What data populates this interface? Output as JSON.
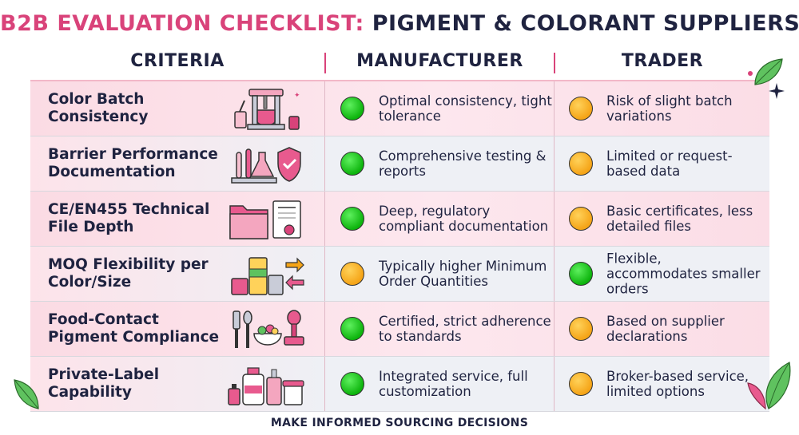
{
  "title": {
    "part1": "B2B EVALUATION CHECKLIST:",
    "part2": "PIGMENT & COLORANT SUPPLIERS"
  },
  "columns": {
    "criteria": "CRITERIA",
    "manufacturer": "MANUFACTURER",
    "trader": "TRADER"
  },
  "rows": [
    {
      "criterion": "Color Batch Consistency",
      "icon": "mixing-machine-icon",
      "manufacturer": {
        "status": "green",
        "text": "Optimal consistency, tight tolerance"
      },
      "trader": {
        "status": "orange",
        "text": "Risk of slight batch variations"
      }
    },
    {
      "criterion": "Barrier Performance Documentation",
      "icon": "lab-shield-icon",
      "manufacturer": {
        "status": "green",
        "text": "Comprehensive testing & reports"
      },
      "trader": {
        "status": "orange",
        "text": "Limited or request-based data"
      }
    },
    {
      "criterion": "CE/EN455 Technical File Depth",
      "icon": "folder-certificate-icon",
      "manufacturer": {
        "status": "green",
        "text": "Deep, regulatory compliant documentation"
      },
      "trader": {
        "status": "orange",
        "text": "Basic certificates, less detailed files"
      }
    },
    {
      "criterion": "MOQ Flexibility per Color/Size",
      "icon": "paint-cans-icon",
      "manufacturer": {
        "status": "orange",
        "text": "Typically higher Minimum Order Quantities"
      },
      "trader": {
        "status": "green",
        "text": "Flexible, accommodates smaller orders"
      }
    },
    {
      "criterion": "Food-Contact Pigment Compliance",
      "icon": "kitchen-stamp-icon",
      "manufacturer": {
        "status": "green",
        "text": "Certified, strict adherence to standards"
      },
      "trader": {
        "status": "orange",
        "text": "Based on supplier declarations"
      }
    },
    {
      "criterion": "Private-Label Capability",
      "icon": "brand-bottles-icon",
      "manufacturer": {
        "status": "green",
        "text": "Integrated service, full customization"
      },
      "trader": {
        "status": "orange",
        "text": "Broker-based service, limited options"
      }
    }
  ],
  "footer": "MAKE INFORMED SOURCING DECISIONS",
  "colors": {
    "accent": "#d9437a",
    "navy": "#1f2340",
    "green": "#0db40d",
    "orange": "#f5a417"
  }
}
